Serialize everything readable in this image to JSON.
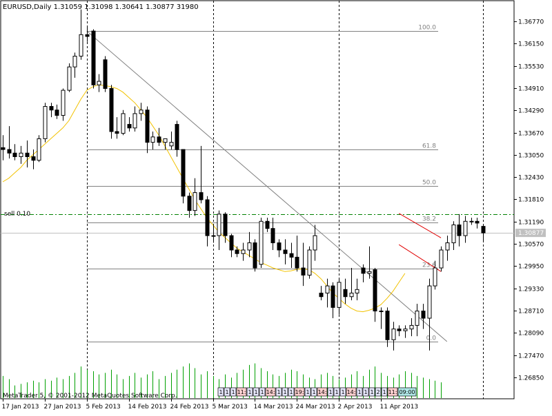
{
  "chart_data": {
    "type": "candlestick",
    "symbol_header": "EURUSD,Daily  1.31059  1.31098  1.30641  1.30877  31980",
    "footer_text": "MetaTrader 5, © 2001-2012 MetaQuotes Software Corp.",
    "current_price_label": "1.30877",
    "current_price": 1.30877,
    "sell_label": "sell 0.10",
    "sell_level": 1.3139,
    "ylim": [
      1.2655,
      1.371
    ],
    "y_ticks": [
      "1.36770",
      "1.36150",
      "1.35530",
      "1.34910",
      "1.34290",
      "1.33670",
      "1.33050",
      "1.32430",
      "1.31810",
      "1.31190",
      "1.30570",
      "1.29950",
      "1.29330",
      "1.28710",
      "1.28090",
      "1.27470",
      "1.26850"
    ],
    "x_tick_labels": [
      "17 Jan 2013",
      "27 Jan 2013",
      "5 Feb 2013",
      "14 Feb 2013",
      "24 Feb 2013",
      "5 Mar 2013",
      "14 Mar 2013",
      "24 Mar 2013",
      "2 Apr 2013",
      "11 Apr 2013"
    ],
    "x_tick_bars": [
      0,
      7,
      14,
      21,
      28,
      35,
      42,
      49,
      56,
      63
    ],
    "period_separators": [
      14,
      35,
      56,
      80
    ],
    "fibonacci": {
      "color": "#808080",
      "levels": [
        {
          "label": "100.0",
          "price": 1.3651
        },
        {
          "label": "61.8",
          "price": 1.332
        },
        {
          "label": "50.0",
          "price": 1.3218
        },
        {
          "label": "38.2",
          "price": 1.3116
        },
        {
          "label": "23.6",
          "price": 1.2989
        },
        {
          "label": "0.0",
          "price": 1.2785
        }
      ]
    },
    "ohlc": [
      [
        1.3325,
        1.336,
        1.329,
        1.332
      ],
      [
        1.332,
        1.3385,
        1.3295,
        1.331
      ],
      [
        1.331,
        1.3335,
        1.329,
        1.33
      ],
      [
        1.33,
        1.333,
        1.328,
        1.331
      ],
      [
        1.331,
        1.3345,
        1.327,
        1.33
      ],
      [
        1.33,
        1.332,
        1.3265,
        1.329
      ],
      [
        1.329,
        1.336,
        1.3285,
        1.335
      ],
      [
        1.335,
        1.345,
        1.334,
        1.344
      ],
      [
        1.344,
        1.345,
        1.341,
        1.343
      ],
      [
        1.343,
        1.3445,
        1.3405,
        1.3415
      ],
      [
        1.3415,
        1.349,
        1.34,
        1.3485
      ],
      [
        1.3485,
        1.356,
        1.348,
        1.355
      ],
      [
        1.355,
        1.359,
        1.352,
        1.358
      ],
      [
        1.358,
        1.371,
        1.357,
        1.364
      ],
      [
        1.364,
        1.366,
        1.362,
        1.3635
      ],
      [
        1.365,
        1.3655,
        1.349,
        1.35
      ],
      [
        1.35,
        1.353,
        1.348,
        1.351
      ],
      [
        1.357,
        1.358,
        1.348,
        1.349
      ],
      [
        1.349,
        1.35,
        1.335,
        1.337
      ],
      [
        1.337,
        1.341,
        1.335,
        1.3365
      ],
      [
        1.3365,
        1.343,
        1.336,
        1.342
      ],
      [
        1.339,
        1.341,
        1.337,
        1.338
      ],
      [
        1.338,
        1.344,
        1.337,
        1.342
      ],
      [
        1.342,
        1.345,
        1.34,
        1.343
      ],
      [
        1.343,
        1.344,
        1.331,
        1.334
      ],
      [
        1.334,
        1.337,
        1.332,
        1.3355
      ],
      [
        1.3355,
        1.338,
        1.333,
        1.334
      ],
      [
        1.334,
        1.335,
        1.332,
        1.335
      ],
      [
        1.333,
        1.337,
        1.332,
        1.334
      ],
      [
        1.339,
        1.34,
        1.33,
        1.332
      ],
      [
        1.332,
        1.332,
        1.317,
        1.319
      ],
      [
        1.319,
        1.32,
        1.313,
        1.315
      ],
      [
        1.315,
        1.324,
        1.3135,
        1.32
      ],
      [
        1.32,
        1.333,
        1.317,
        1.318
      ],
      [
        1.318,
        1.319,
        1.305,
        1.308
      ],
      [
        1.308,
        1.311,
        1.306,
        1.308
      ],
      [
        1.308,
        1.315,
        1.304,
        1.314
      ],
      [
        1.314,
        1.3145,
        1.306,
        1.308
      ],
      [
        1.308,
        1.3085,
        1.302,
        1.304
      ],
      [
        1.304,
        1.305,
        1.302,
        1.303
      ],
      [
        1.303,
        1.306,
        1.301,
        1.304
      ],
      [
        1.304,
        1.309,
        1.302,
        1.306
      ],
      [
        1.306,
        1.307,
        1.298,
        1.299
      ],
      [
        1.3,
        1.313,
        1.299,
        1.312
      ],
      [
        1.312,
        1.313,
        1.309,
        1.31
      ],
      [
        1.31,
        1.313,
        1.304,
        1.306
      ],
      [
        1.306,
        1.307,
        1.302,
        1.304
      ],
      [
        1.304,
        1.307,
        1.3,
        1.303
      ],
      [
        1.303,
        1.306,
        1.299,
        1.302
      ],
      [
        1.302,
        1.308,
        1.298,
        1.299
      ],
      [
        1.299,
        1.306,
        1.294,
        1.297
      ],
      [
        1.297,
        1.305,
        1.296,
        1.304
      ],
      [
        1.304,
        1.311,
        1.301,
        1.308
      ],
      [
        1.292,
        1.294,
        1.29,
        1.291
      ],
      [
        1.292,
        1.296,
        1.288,
        1.294
      ],
      [
        1.294,
        1.295,
        1.285,
        1.288
      ],
      [
        1.288,
        1.296,
        1.286,
        1.295
      ],
      [
        1.293,
        1.296,
        1.289,
        1.291
      ],
      [
        1.291,
        1.299,
        1.29,
        1.292
      ],
      [
        1.292,
        1.296,
        1.29,
        1.293
      ],
      [
        1.299,
        1.3,
        1.295,
        1.2975
      ],
      [
        1.2975,
        1.305,
        1.296,
        1.298
      ],
      [
        1.2985,
        1.299,
        1.284,
        1.287
      ],
      [
        1.287,
        1.288,
        1.282,
        1.287
      ],
      [
        1.287,
        1.288,
        1.277,
        1.279
      ],
      [
        1.279,
        1.284,
        1.276,
        1.282
      ],
      [
        1.282,
        1.283,
        1.28,
        1.2815
      ],
      [
        1.2815,
        1.283,
        1.2795,
        1.282
      ],
      [
        1.282,
        1.285,
        1.28,
        1.283
      ],
      [
        1.283,
        1.289,
        1.28,
        1.287
      ],
      [
        1.287,
        1.289,
        1.282,
        1.285
      ],
      [
        1.285,
        1.296,
        1.276,
        1.294
      ],
      [
        1.294,
        1.301,
        1.293,
        1.299
      ],
      [
        1.299,
        1.305,
        1.298,
        1.304
      ],
      [
        1.304,
        1.308,
        1.301,
        1.306
      ],
      [
        1.306,
        1.312,
        1.304,
        1.311
      ],
      [
        1.311,
        1.314,
        1.305,
        1.308
      ],
      [
        1.308,
        1.3135,
        1.306,
        1.312
      ],
      [
        1.312,
        1.313,
        1.311,
        1.312
      ],
      [
        1.312,
        1.313,
        1.31,
        1.3115
      ],
      [
        1.31059,
        1.31098,
        1.30641,
        1.30877
      ]
    ],
    "moving_average": {
      "color": "#f2c200",
      "values": [
        1.323,
        1.324,
        1.3255,
        1.327,
        1.329,
        1.3305,
        1.332,
        1.3335,
        1.335,
        1.3365,
        1.338,
        1.34,
        1.343,
        1.346,
        1.3485,
        1.3495,
        1.35,
        1.3498,
        1.3495,
        1.349,
        1.348,
        1.3465,
        1.345,
        1.343,
        1.341,
        1.3385,
        1.336,
        1.333,
        1.33,
        1.327,
        1.324,
        1.321,
        1.318,
        1.3155,
        1.313,
        1.311,
        1.309,
        1.3075,
        1.306,
        1.3045,
        1.3035,
        1.3025,
        1.3015,
        1.3005,
        1.2998,
        1.299,
        1.2985,
        1.298,
        1.2982,
        1.2986,
        1.2988,
        1.2985,
        1.2975,
        1.296,
        1.294,
        1.292,
        1.2905,
        1.289,
        1.2878,
        1.287,
        1.2868,
        1.2872,
        1.2878,
        1.2888,
        1.2905,
        1.2925,
        1.295,
        1.2975
      ]
    },
    "volume_bars": [
      14,
      12,
      8,
      9,
      10,
      11,
      10,
      12,
      11,
      13,
      12,
      14,
      16,
      20,
      18,
      17,
      15,
      16,
      18,
      15,
      12,
      14,
      16,
      13,
      15,
      17,
      12,
      14,
      16,
      18,
      20,
      22,
      19,
      15,
      17,
      14,
      12,
      15,
      13,
      16,
      18,
      21,
      22,
      19,
      17,
      15,
      14,
      16,
      18,
      17,
      15,
      13,
      12,
      15,
      16,
      14,
      12,
      13,
      15,
      17,
      14,
      18,
      20,
      16,
      14,
      13,
      15,
      17,
      16,
      14,
      13,
      12,
      11,
      10
    ],
    "volume_max": 24,
    "trendline": {
      "from_bar": 14,
      "from_price": 1.365,
      "to_bar": 74,
      "to_price": 1.2785,
      "color": "#808080"
    },
    "channel": {
      "color": "#e00000",
      "upper": {
        "from_bar": 66,
        "from_price": 1.3142,
        "to_bar": 73,
        "to_price": 1.3074
      },
      "lower": {
        "from_bar": 66,
        "from_price": 1.3055,
        "to_bar": 73,
        "to_price": 1.298
      }
    },
    "trade_markers": [
      "1",
      "1",
      "1",
      "11:",
      "1",
      "1",
      "1",
      "14:",
      "1",
      "1",
      "1",
      "19:",
      "1",
      "1",
      "14:",
      "1",
      "1",
      "1",
      "14:",
      "1",
      "1",
      "1",
      "2",
      "1",
      "11:",
      "09:00"
    ]
  }
}
